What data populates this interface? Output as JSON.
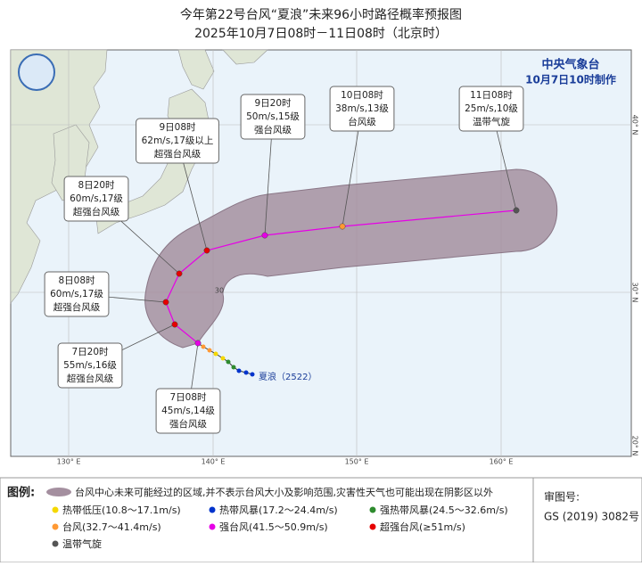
{
  "header": {
    "title": "今年第22号台风“夏浪”未来96小时路径概率预报图",
    "subtitle": "2025年10月7日08时－11日08时（北京时）"
  },
  "map": {
    "agency": "中央气象台",
    "issued": "10月7日10时制作",
    "storm_label": "夏浪（2522）",
    "inner_label": "30",
    "lon_labels": [
      "130° E",
      "140° E",
      "150° E",
      "160° E"
    ],
    "lat_labels": [
      "20° N",
      "30° N",
      "40° N"
    ],
    "forecasts": [
      {
        "time": "7日08时",
        "wind": "45m/s,14级",
        "category": "强台风级",
        "color": "#e600e6"
      },
      {
        "time": "7日20时",
        "wind": "55m/s,16级",
        "category": "超强台风级",
        "color": "#e60000"
      },
      {
        "time": "8日08时",
        "wind": "60m/s,17级",
        "category": "超强台风级",
        "color": "#e60000"
      },
      {
        "time": "8日20时",
        "wind": "60m/s,17级",
        "category": "超强台风级",
        "color": "#e60000"
      },
      {
        "time": "9日08时",
        "wind": "62m/s,17级以上",
        "category": "超强台风级",
        "color": "#e60000"
      },
      {
        "time": "9日20时",
        "wind": "50m/s,15级",
        "category": "强台风级",
        "color": "#e600e6"
      },
      {
        "time": "10日08时",
        "wind": "38m/s,13级",
        "category": "台风级",
        "color": "#ff9933"
      },
      {
        "time": "11日08时",
        "wind": "25m/s,10级",
        "category": "温带气旋",
        "color": "#555555"
      }
    ]
  },
  "legend": {
    "title": "图例:",
    "cone": "台风中心未来可能经过的区域,并不表示台风大小及影响范围,灾害性天气也可能出现在阴影区以外",
    "items": [
      {
        "label": "热带低压(10.8～17.1m/s)",
        "color": "#f5d800"
      },
      {
        "label": "热带风暴(17.2～24.4m/s)",
        "color": "#0033cc"
      },
      {
        "label": "强热带风暴(24.5～32.6m/s)",
        "color": "#2e8b2e"
      },
      {
        "label": "台风(32.7～41.4m/s)",
        "color": "#ff9933"
      },
      {
        "label": "强台风(41.5～50.9m/s)",
        "color": "#e600e6"
      },
      {
        "label": "超强台风(≥51m/s)",
        "color": "#e60000"
      },
      {
        "label": "温带气旋",
        "color": "#555555"
      }
    ],
    "map_no_title": "审图号:",
    "map_no": "GS (2019) 3082号"
  }
}
